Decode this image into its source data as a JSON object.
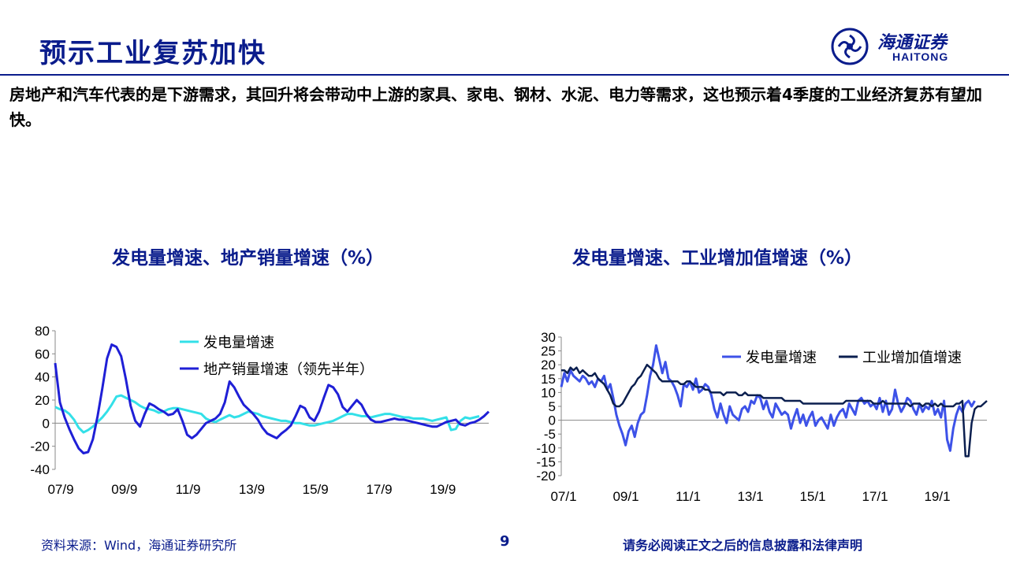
{
  "header": {
    "title": "预示工业复苏加快",
    "logo_cn": "海通证券",
    "logo_en": "HAITONG"
  },
  "lead": "房地产和汽车代表的是下游需求，其回升将会带动中上游的家具、家电、钢材、水泥、电力等需求，这也预示着4季度的工业经济复苏有望加快。",
  "footer": {
    "source": "资料来源：Wind，海通证券研究所",
    "page": "9",
    "disclaimer": "请务必阅读正文之后的信息披露和法律声明"
  },
  "colors": {
    "brand": "#0a1c8c",
    "cyan": "#33e0e8",
    "blue": "#1f1fd6",
    "lightblue": "#3d52e8",
    "navy": "#0b1f4f"
  },
  "chart_data": [
    {
      "type": "line",
      "title": "发电量增速、地产销量增速（%）",
      "x_tick_labels": [
        "07/9",
        "09/9",
        "11/9",
        "13/9",
        "15/9",
        "17/9",
        "19/9"
      ],
      "y_tick_labels": [
        "80",
        "60",
        "40",
        "20",
        "0",
        "-20",
        "-40"
      ],
      "ylim": [
        -40,
        80
      ],
      "grid": false,
      "legend_position": "top-center",
      "x_start": "2007-09",
      "series": [
        {
          "name": "发电量增速",
          "color": "#33e0e8",
          "values": [
            14,
            12,
            11,
            8,
            3,
            -4,
            -8,
            -6,
            -3,
            1,
            5,
            10,
            16,
            23,
            24,
            22,
            20,
            18,
            15,
            13,
            12,
            11,
            9,
            10,
            12,
            13,
            13,
            12,
            11,
            10,
            9,
            8,
            4,
            2,
            1,
            3,
            5,
            7,
            5,
            6,
            8,
            10,
            9,
            8,
            6,
            5,
            4,
            3,
            2,
            2,
            1,
            0,
            0,
            -1,
            -2,
            -2,
            -1,
            0,
            1,
            2,
            4,
            6,
            8,
            8,
            7,
            6,
            6,
            5,
            6,
            7,
            8,
            8,
            7,
            6,
            5,
            5,
            4,
            4,
            4,
            3,
            2,
            3,
            4,
            5,
            -6,
            -5,
            2,
            5,
            4,
            5,
            6
          ]
        },
        {
          "name": "地产销量增速（领先半年）",
          "color": "#1f1fd6",
          "values": [
            52,
            18,
            5,
            -5,
            -14,
            -22,
            -26,
            -25,
            -14,
            6,
            30,
            56,
            68,
            66,
            58,
            38,
            15,
            2,
            -3,
            8,
            17,
            15,
            12,
            10,
            7,
            8,
            12,
            2,
            -10,
            -13,
            -10,
            -5,
            0,
            2,
            4,
            8,
            18,
            36,
            31,
            23,
            16,
            12,
            8,
            3,
            -4,
            -9,
            -11,
            -13,
            -9,
            -6,
            -2,
            6,
            15,
            13,
            5,
            2,
            10,
            22,
            33,
            31,
            25,
            14,
            10,
            15,
            20,
            16,
            8,
            3,
            1,
            1,
            2,
            3,
            4,
            3,
            3,
            2,
            1,
            0,
            -1,
            -2,
            -3,
            -3,
            -1,
            1,
            2,
            3,
            -1,
            -2,
            0,
            1,
            3,
            6,
            10
          ]
        }
      ]
    },
    {
      "type": "line",
      "title": "发电量增速、工业增加值增速（%）",
      "x_tick_labels": [
        "07/1",
        "09/1",
        "11/1",
        "13/1",
        "15/1",
        "17/1",
        "19/1"
      ],
      "y_tick_labels": [
        "30",
        "25",
        "20",
        "15",
        "10",
        "5",
        "0",
        "-5",
        "-10",
        "-15",
        "-20"
      ],
      "ylim": [
        -20,
        30
      ],
      "grid": false,
      "legend_position": "top-right",
      "x_start": "2007-01",
      "series": [
        {
          "name": "发电量增速",
          "color": "#3d52e8",
          "values": [
            12,
            17,
            14,
            18,
            16,
            15,
            14,
            16,
            15,
            13,
            14,
            12,
            15,
            14,
            16,
            11,
            13,
            8,
            2,
            -2,
            -5,
            -9,
            -4,
            -2,
            -6,
            -1,
            2,
            3,
            9,
            16,
            20,
            27,
            22,
            17,
            21,
            15,
            14,
            12,
            9,
            5,
            13,
            12,
            14,
            11,
            15,
            10,
            11,
            13,
            12,
            9,
            4,
            1,
            6,
            2,
            -1,
            5,
            2,
            1,
            0,
            4,
            5,
            3,
            7,
            6,
            9,
            8,
            4,
            7,
            3,
            1,
            6,
            4,
            2,
            3,
            2,
            -3,
            1,
            4,
            -1,
            2,
            -2,
            1,
            3,
            -2,
            0,
            1,
            -1,
            -3,
            2,
            -2,
            1,
            3,
            4,
            1,
            6,
            4,
            2,
            7,
            8,
            6,
            7,
            5,
            6,
            4,
            8,
            3,
            7,
            2,
            4,
            11,
            6,
            3,
            5,
            8,
            7,
            4,
            2,
            6,
            3,
            5,
            4,
            7,
            2,
            4,
            1,
            7,
            -7,
            -11,
            -3,
            2,
            5,
            3,
            6,
            7,
            5,
            7
          ]
        },
        {
          "name": "工业增加值增速",
          "color": "#0b1f4f",
          "values": [
            18,
            18,
            17,
            19,
            18,
            19,
            17,
            18,
            17,
            16,
            16,
            17,
            15,
            14,
            13,
            11,
            9,
            6,
            5,
            5,
            6,
            8,
            10,
            12,
            13,
            15,
            16,
            18,
            20,
            19,
            18,
            17,
            15,
            14,
            14,
            14,
            14,
            14,
            14,
            13,
            13,
            14,
            14,
            13,
            12,
            12,
            12,
            11,
            11,
            10,
            10,
            10,
            10,
            9,
            10,
            10,
            10,
            10,
            9,
            9,
            10,
            9,
            9,
            9,
            9,
            9,
            8,
            8,
            8,
            8,
            8,
            8,
            8,
            7,
            7,
            7,
            7,
            7,
            7,
            6,
            6,
            6,
            6,
            6,
            6,
            6,
            6,
            6,
            6,
            6,
            6,
            6,
            6,
            7,
            7,
            7,
            7,
            7,
            7,
            7,
            7,
            7,
            6,
            6,
            6,
            7,
            6,
            6,
            6,
            6,
            6,
            6,
            6,
            6,
            5,
            6,
            6,
            6,
            5,
            6,
            6,
            5,
            6,
            5,
            6,
            5,
            5,
            5,
            5,
            6,
            6,
            7,
            -13,
            -13,
            -1,
            4,
            5,
            5,
            6,
            7
          ]
        }
      ]
    }
  ]
}
